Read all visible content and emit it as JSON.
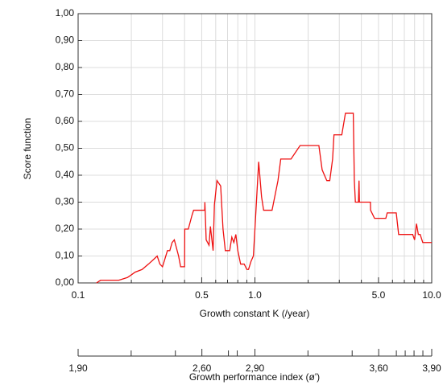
{
  "chart_data": {
    "type": "line",
    "ylabel": "Score function",
    "xlabel": "Growth constant K (/year)",
    "x2label": "Growth performance index (ø')",
    "xscale": "log",
    "xlim": [
      0.1,
      10
    ],
    "ylim": [
      0,
      1
    ],
    "xticks": [
      0.1,
      0.5,
      {
        "value": 1,
        "label": "1.0"
      },
      {
        "value": 5,
        "label": "5.0"
      },
      {
        "value": 10,
        "label": "10.0"
      }
    ],
    "xgrid_minor": [
      0.2,
      0.3,
      0.4,
      0.6,
      0.7,
      0.8,
      0.9,
      2,
      3,
      4,
      6,
      7,
      8,
      9
    ],
    "yticks": [
      {
        "value": 0,
        "label": "0,00"
      },
      {
        "value": 0.1,
        "label": "0,10"
      },
      {
        "value": 0.2,
        "label": "0,20"
      },
      {
        "value": 0.3,
        "label": "0,30"
      },
      {
        "value": 0.4,
        "label": "0,40"
      },
      {
        "value": 0.5,
        "label": "0,50"
      },
      {
        "value": 0.6,
        "label": "0,60"
      },
      {
        "value": 0.7,
        "label": "0,70"
      },
      {
        "value": 0.8,
        "label": "0,80"
      },
      {
        "value": 0.9,
        "label": "0,90"
      },
      {
        "value": 1,
        "label": "1,00"
      }
    ],
    "x2lim": [
      1.9,
      3.9
    ],
    "x2ticks": [
      {
        "value": 1.9,
        "label": "1,90"
      },
      {
        "value": 2.6,
        "label": "2,60"
      },
      {
        "value": 2.9,
        "label": "2,90"
      },
      {
        "value": 3.6,
        "label": "3,60"
      },
      {
        "value": 3.9,
        "label": "3,90"
      }
    ],
    "x2minor": [
      2.2,
      2.45,
      2.75,
      2.8,
      3.2,
      3.45,
      3.7,
      3.75,
      3.8,
      3.85
    ],
    "grid": true,
    "color": "#ee1111",
    "x": [
      0.127,
      0.134,
      0.17,
      0.19,
      0.2,
      0.21,
      0.23,
      0.25,
      0.27,
      0.28,
      0.29,
      0.3,
      0.31,
      0.32,
      0.33,
      0.34,
      0.35,
      0.37,
      0.38,
      0.4,
      0.401,
      0.42,
      0.44,
      0.45,
      0.5,
      0.52,
      0.521,
      0.53,
      0.55,
      0.56,
      0.58,
      0.59,
      0.61,
      0.64,
      0.66,
      0.68,
      0.72,
      0.74,
      0.76,
      0.78,
      0.8,
      0.83,
      0.87,
      0.9,
      0.92,
      0.95,
      0.98,
      1.0,
      1.05,
      1.09,
      1.12,
      1.25,
      1.35,
      1.4,
      1.6,
      1.8,
      2.3,
      2.4,
      2.55,
      2.65,
      2.75,
      2.8,
      3.1,
      3.25,
      3.6,
      3.65,
      3.7,
      3.85,
      3.88,
      3.9,
      4.5,
      4.51,
      4.75,
      5.5,
      5.6,
      6.3,
      6.5,
      7.8,
      8.0,
      8.2,
      8.4,
      8.6,
      8.9,
      10
    ],
    "values": [
      0,
      0.01,
      0.01,
      0.02,
      0.03,
      0.04,
      0.05,
      0.07,
      0.09,
      0.1,
      0.07,
      0.06,
      0.09,
      0.12,
      0.12,
      0.15,
      0.16,
      0.1,
      0.06,
      0.06,
      0.2,
      0.2,
      0.25,
      0.27,
      0.27,
      0.27,
      0.3,
      0.16,
      0.14,
      0.21,
      0.12,
      0.29,
      0.38,
      0.36,
      0.2,
      0.12,
      0.12,
      0.17,
      0.15,
      0.18,
      0.12,
      0.07,
      0.07,
      0.05,
      0.05,
      0.08,
      0.1,
      0.2,
      0.45,
      0.32,
      0.27,
      0.27,
      0.38,
      0.46,
      0.46,
      0.51,
      0.51,
      0.42,
      0.38,
      0.38,
      0.46,
      0.55,
      0.55,
      0.63,
      0.63,
      0.38,
      0.3,
      0.3,
      0.38,
      0.3,
      0.3,
      0.27,
      0.24,
      0.24,
      0.26,
      0.26,
      0.18,
      0.18,
      0.16,
      0.22,
      0.18,
      0.18,
      0.15,
      0.15
    ]
  }
}
